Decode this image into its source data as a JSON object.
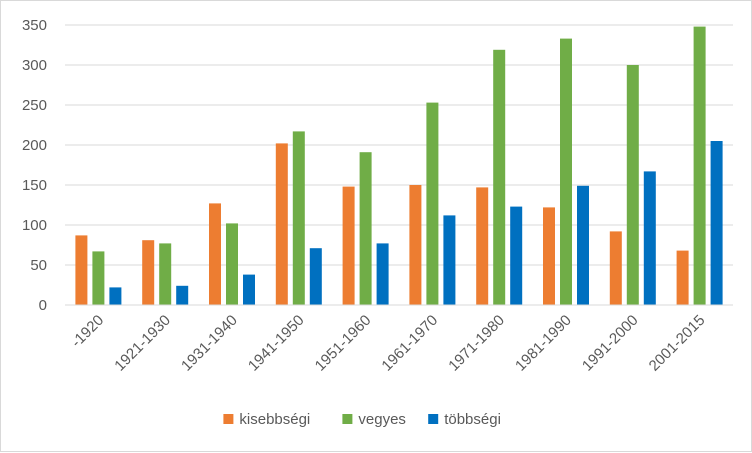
{
  "chart_data": {
    "type": "bar",
    "title": "",
    "xlabel": "",
    "ylabel": "",
    "ylim": [
      0,
      350
    ],
    "yticks": [
      "0",
      "50",
      "100",
      "150",
      "200",
      "250",
      "300",
      "350"
    ],
    "grid": true,
    "legend_position": "bottom",
    "categories": [
      "-1920",
      "1921-1930",
      "1931-1940",
      "1941-1950",
      "1951-1960",
      "1961-1970",
      "1971-1980",
      "1981-1990",
      "1991-2000",
      "2001-2015"
    ],
    "series": [
      {
        "name": "kisebbségi",
        "color": "#ed7d31",
        "values": [
          87,
          81,
          127,
          202,
          148,
          150,
          147,
          122,
          92,
          68
        ]
      },
      {
        "name": "vegyes",
        "color": "#70ad47",
        "values": [
          67,
          77,
          102,
          217,
          191,
          253,
          319,
          333,
          300,
          348
        ]
      },
      {
        "name": "többségi",
        "color": "#0070c0",
        "values": [
          22,
          24,
          38,
          71,
          77,
          112,
          123,
          149,
          167,
          205
        ]
      }
    ]
  }
}
